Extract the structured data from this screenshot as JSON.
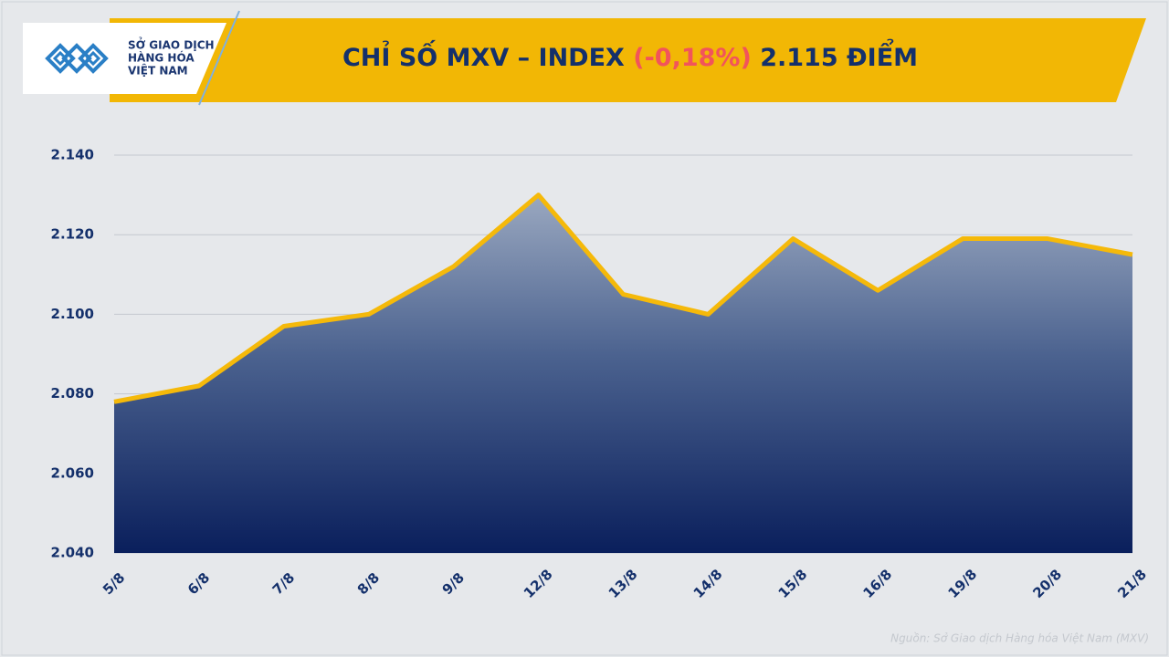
{
  "logo": {
    "lines": [
      "SỞ GIAO DỊCH",
      "HÀNG HÓA",
      "VIỆT NAM"
    ]
  },
  "chart_data": {
    "type": "area",
    "title": {
      "prefix": "CHỈ SỐ MXV – INDEX",
      "change": "(-0,18%)",
      "value": "2.115 ĐIỂM"
    },
    "categories": [
      "5/8",
      "6/8",
      "7/8",
      "8/8",
      "9/8",
      "12/8",
      "13/8",
      "14/8",
      "15/8",
      "16/8",
      "19/8",
      "20/8",
      "21/8"
    ],
    "values": [
      2078,
      2082,
      2097,
      2100,
      2112,
      2130,
      2105,
      2100,
      2119,
      2106,
      2119,
      2119,
      2115
    ],
    "color": "#f5b90a",
    "ylim": [
      2040,
      2140
    ],
    "yticks": [
      {
        "value": 2040,
        "label": "2.040"
      },
      {
        "value": 2060,
        "label": "2.060"
      },
      {
        "value": 2080,
        "label": "2.080"
      },
      {
        "value": 2100,
        "label": "2.100"
      },
      {
        "value": 2120,
        "label": "2.120"
      },
      {
        "value": 2140,
        "label": "2.140"
      }
    ],
    "grid": true,
    "source": "Nguồn: Sở Giao dịch Hàng hóa Việt Nam (MXV)"
  }
}
